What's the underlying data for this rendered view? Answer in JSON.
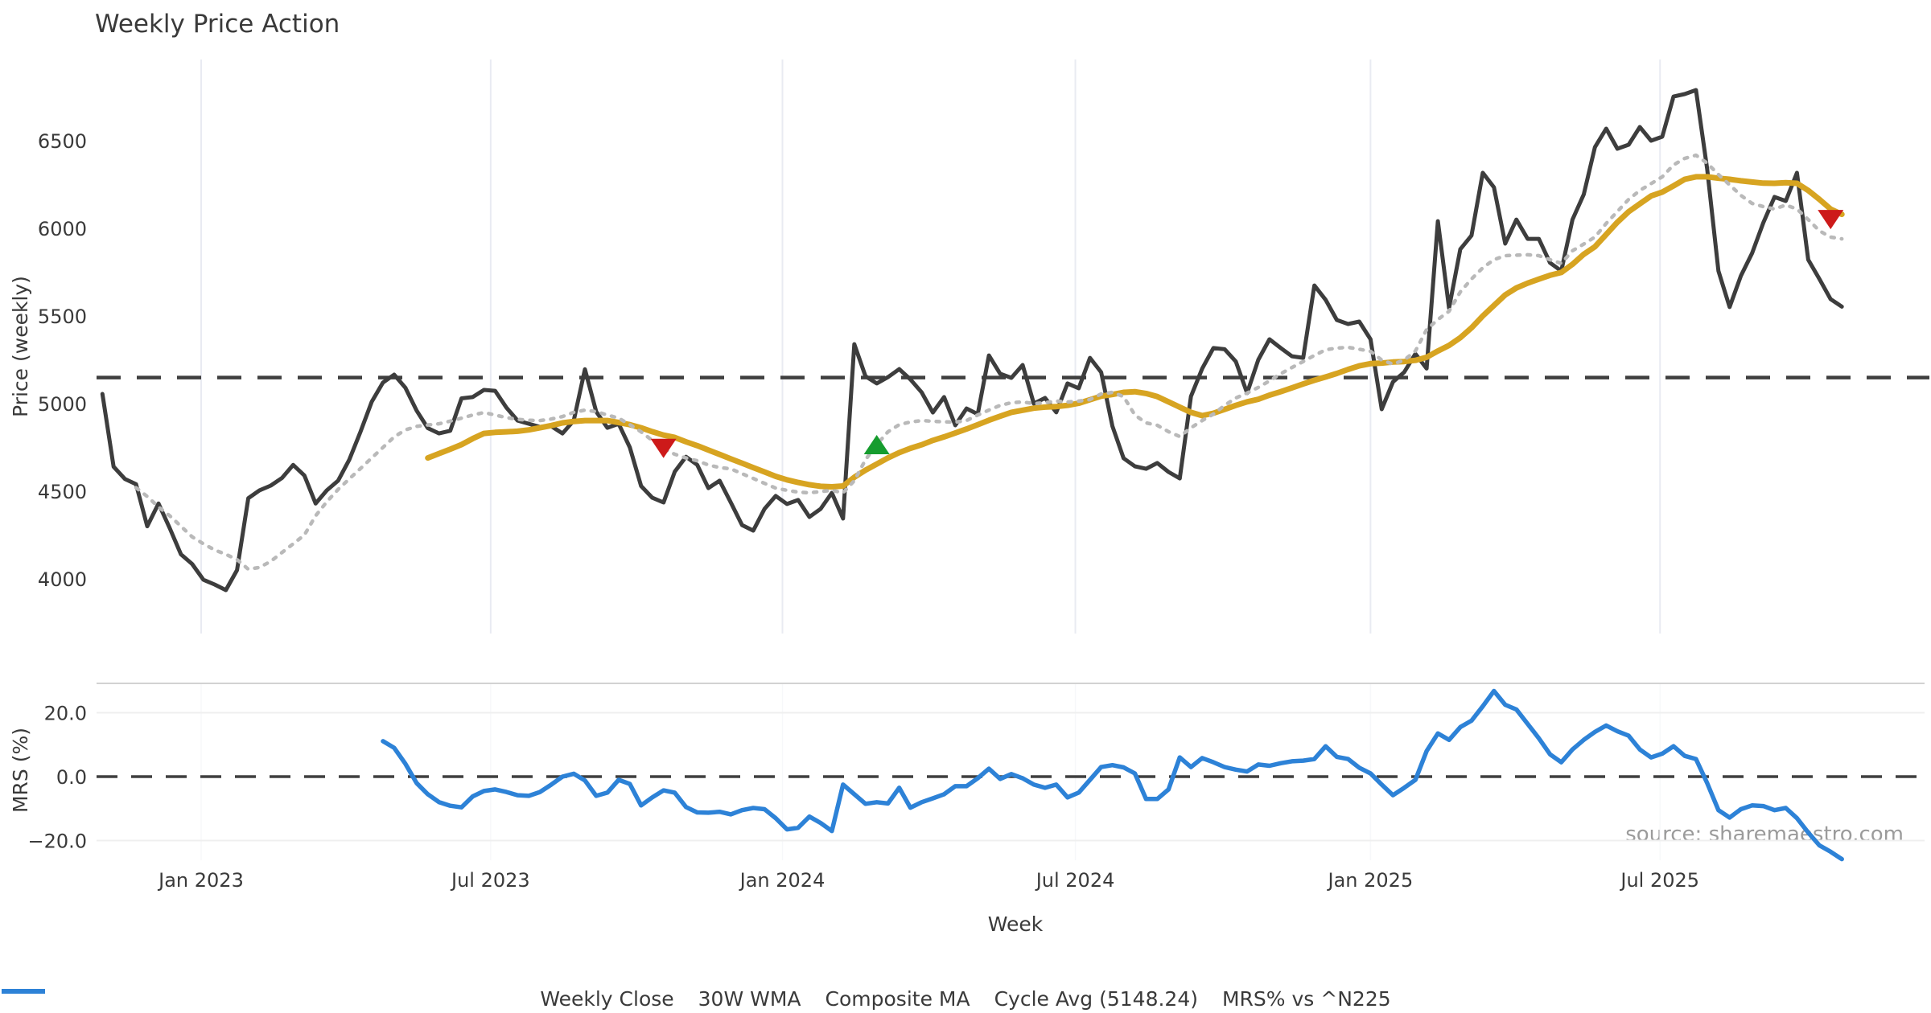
{
  "title": "Weekly Price Action",
  "source_note": "source: sharemaestro.com",
  "axes": {
    "x_label": "Week",
    "price_label": "Price (weekly)",
    "mrs_label": "MRS (%)",
    "price_ticks": [
      4000,
      4500,
      5000,
      5500,
      6000,
      6500
    ],
    "mrs_ticks": [
      -20.0,
      0.0,
      20.0
    ],
    "mrs_tick_labels": [
      "−20.0",
      "0.0",
      "20.0"
    ],
    "x_tick_labels": [
      "Jan 2023",
      "Jul 2023",
      "Jan 2024",
      "Jul 2024",
      "Jan 2025",
      "Jul 2025"
    ],
    "x_tick_week_index": [
      8.8,
      34.6,
      60.6,
      86.7,
      113.0,
      138.8
    ]
  },
  "colors": {
    "text": "#3a3a3a",
    "close": "#3d3d3d",
    "wma": "#d7a421",
    "composite": "#b9b9b9",
    "cycle": "#3f3f3f",
    "mrs": "#2d82d7",
    "marker_red": "#cd1a1a",
    "marker_green": "#169c2e",
    "grid_vertical": "#e9ebf2",
    "grid_light": "#efefef",
    "panel_border": "#d2d2d2"
  },
  "chart_data": {
    "type": "line",
    "title": "Weekly Price Action",
    "xlabel": "Week",
    "weeks_total": 156,
    "price_ylim": [
      3850,
      6900
    ],
    "mrs_ylim": [
      -29,
      29
    ],
    "cycle_avg": 5148.24,
    "legend": [
      {
        "label": "Weekly Close",
        "style": "solid",
        "color": "#3d3d3d"
      },
      {
        "label": "30W WMA",
        "style": "solid",
        "color": "#d7a421"
      },
      {
        "label": "Composite MA",
        "style": "dotted",
        "color": "#b9b9b9"
      },
      {
        "label": "Cycle Avg (5148.24)",
        "style": "dashed",
        "color": "#3f3f3f"
      },
      {
        "label": "MRS% vs ^N225",
        "style": "solid",
        "color": "#2d82d7"
      }
    ],
    "series": [
      {
        "name": "Weekly Close",
        "panel": "price",
        "style": "solid",
        "color": "#3d3d3d",
        "width": 5,
        "start_index": 0,
        "values": [
          5055,
          4640,
          4570,
          4540,
          4300,
          4430,
          4290,
          4140,
          4085,
          3995,
          3968,
          3936,
          4050,
          4460,
          4505,
          4532,
          4575,
          4650,
          4590,
          4430,
          4505,
          4560,
          4680,
          4840,
          5010,
          5120,
          5165,
          5090,
          4960,
          4860,
          4830,
          4845,
          5030,
          5037,
          5078,
          5073,
          4977,
          4903,
          4885,
          4867,
          4871,
          4830,
          4903,
          5196,
          4954,
          4862,
          4885,
          4750,
          4530,
          4463,
          4436,
          4611,
          4697,
          4651,
          4518,
          4560,
          4436,
          4307,
          4275,
          4399,
          4473,
          4427,
          4450,
          4353,
          4399,
          4491,
          4344,
          5339,
          5156,
          5115,
          5151,
          5197,
          5138,
          5064,
          4949,
          5037,
          4876,
          4972,
          4940,
          5275,
          5170,
          5147,
          5220,
          5000,
          5032,
          4950,
          5115,
          5087,
          5261,
          5179,
          4871,
          4688,
          4642,
          4628,
          4661,
          4610,
          4573,
          5041,
          5200,
          5317,
          5310,
          5240,
          5060,
          5250,
          5367,
          5317,
          5270,
          5261,
          5674,
          5592,
          5477,
          5454,
          5468,
          5367,
          4968,
          5124,
          5179,
          5284,
          5200,
          6041,
          5545,
          5881,
          5959,
          6317,
          6234,
          5913,
          6050,
          5940,
          5940,
          5803,
          5757,
          6050,
          6193,
          6463,
          6569,
          6454,
          6477,
          6578,
          6500,
          6523,
          6752,
          6766,
          6789,
          6339,
          5757,
          5551,
          5729,
          5858,
          6032,
          6179,
          6156,
          6317,
          5821,
          5711,
          5596,
          5553
        ]
      },
      {
        "name": "30W WMA",
        "panel": "price",
        "style": "solid",
        "color": "#d7a421",
        "width": 7,
        "start_index": 29,
        "values": [
          4690,
          4715,
          4740,
          4766,
          4800,
          4830,
          4836,
          4839,
          4842,
          4850,
          4862,
          4875,
          4890,
          4898,
          4903,
          4903,
          4903,
          4892,
          4880,
          4862,
          4840,
          4820,
          4807,
          4782,
          4760,
          4735,
          4710,
          4685,
          4660,
          4635,
          4610,
          4585,
          4565,
          4550,
          4537,
          4528,
          4525,
          4530,
          4580,
          4620,
          4655,
          4690,
          4720,
          4745,
          4765,
          4790,
          4810,
          4832,
          4855,
          4880,
          4905,
          4928,
          4950,
          4962,
          4974,
          4980,
          4983,
          4990,
          5002,
          5022,
          5042,
          5052,
          5064,
          5068,
          5058,
          5040,
          5010,
          4980,
          4950,
          4931,
          4945,
          4967,
          4990,
          5010,
          5025,
          5048,
          5068,
          5090,
          5112,
          5133,
          5152,
          5172,
          5195,
          5215,
          5228,
          5231,
          5237,
          5240,
          5247,
          5264,
          5300,
          5332,
          5376,
          5432,
          5500,
          5560,
          5620,
          5660,
          5687,
          5710,
          5732,
          5748,
          5795,
          5852,
          5895,
          5965,
          6035,
          6095,
          6140,
          6185,
          6207,
          6242,
          6280,
          6294,
          6294,
          6286,
          6280,
          6271,
          6264,
          6258,
          6257,
          6260,
          6257,
          6216,
          6165,
          6110,
          6080
        ]
      },
      {
        "name": "Composite MA",
        "panel": "price",
        "style": "dotted",
        "color": "#b9b9b9",
        "width": 4.5,
        "start_index": 3,
        "values": [
          4520,
          4470,
          4410,
          4360,
          4300,
          4240,
          4200,
          4165,
          4140,
          4110,
          4055,
          4065,
          4100,
          4150,
          4200,
          4250,
          4360,
          4440,
          4510,
          4570,
          4630,
          4690,
          4750,
          4810,
          4850,
          4870,
          4878,
          4885,
          4900,
          4917,
          4935,
          4949,
          4935,
          4920,
          4910,
          4905,
          4903,
          4912,
          4926,
          4950,
          4963,
          4954,
          4935,
          4917,
          4880,
          4839,
          4790,
          4743,
          4711,
          4690,
          4674,
          4650,
          4635,
          4628,
          4600,
          4573,
          4545,
          4518,
          4505,
          4495,
          4491,
          4498,
          4505,
          4491,
          4560,
          4680,
          4766,
          4839,
          4880,
          4895,
          4903,
          4899,
          4896,
          4894,
          4903,
          4935,
          4963,
          4990,
          5005,
          5009,
          5000,
          5005,
          5014,
          5009,
          5014,
          5023,
          5055,
          5064,
          5040,
          4935,
          4890,
          4876,
          4840,
          4812,
          4862,
          4903,
          4940,
          4990,
          5032,
          5060,
          5092,
          5130,
          5170,
          5206,
          5240,
          5275,
          5307,
          5317,
          5321,
          5310,
          5298,
          5248,
          5225,
          5248,
          5300,
          5422,
          5480,
          5527,
          5637,
          5711,
          5775,
          5821,
          5844,
          5847,
          5849,
          5844,
          5821,
          5800,
          5872,
          5910,
          5950,
          6028,
          6096,
          6165,
          6216,
          6255,
          6294,
          6362,
          6399,
          6417,
          6372,
          6307,
          6248,
          6188,
          6142,
          6124,
          6110,
          6133,
          6110,
          6050,
          5986,
          5950,
          5940
        ]
      },
      {
        "name": "MRS% vs ^N225",
        "panel": "mrs",
        "style": "solid",
        "color": "#2d82d7",
        "width": 5.5,
        "start_index": 25,
        "values": [
          11.1,
          9.0,
          4.0,
          -2.0,
          -5.5,
          -8.0,
          -9.1,
          -9.6,
          -6.2,
          -4.5,
          -4.0,
          -4.8,
          -5.8,
          -6.0,
          -4.8,
          -2.5,
          0.0,
          0.9,
          -1.2,
          -6.0,
          -5.0,
          -1.0,
          -2.3,
          -9.0,
          -6.5,
          -4.3,
          -5.0,
          -9.5,
          -11.2,
          -11.3,
          -11.0,
          -11.8,
          -10.5,
          -9.8,
          -10.2,
          -13.0,
          -16.5,
          -16.0,
          -12.5,
          -14.5,
          -17.0,
          -2.5,
          -5.5,
          -8.5,
          -8.0,
          -8.4,
          -3.5,
          -9.7,
          -8.0,
          -6.8,
          -5.5,
          -3.0,
          -3.0,
          -0.5,
          2.5,
          -0.7,
          0.8,
          -0.5,
          -2.5,
          -3.5,
          -2.5,
          -6.5,
          -5.0,
          -1.0,
          3.0,
          3.6,
          2.9,
          1.0,
          -7.0,
          -7.0,
          -4.0,
          6.0,
          3.0,
          5.8,
          4.5,
          3.0,
          2.2,
          1.6,
          3.8,
          3.4,
          4.2,
          4.8,
          5.0,
          5.5,
          9.5,
          6.2,
          5.5,
          2.8,
          1.0,
          -2.5,
          -5.8,
          -3.5,
          -1.0,
          8.0,
          13.5,
          11.5,
          15.5,
          17.5,
          22.0,
          26.8,
          22.5,
          21.0,
          16.5,
          12.0,
          7.0,
          4.5,
          8.5,
          11.5,
          14.0,
          16.0,
          14.2,
          12.8,
          8.5,
          6.0,
          7.2,
          9.5,
          6.5,
          5.5,
          -2.0,
          -10.5,
          -12.8,
          -10.2,
          -9.0,
          -9.2,
          -10.5,
          -9.8,
          -13.0,
          -17.5,
          -21.5,
          -23.5,
          -25.8
        ]
      }
    ],
    "markers": [
      {
        "shape": "triangle-down",
        "color": "#cd1a1a",
        "week_index": 50,
        "value": 4744
      },
      {
        "shape": "triangle-up",
        "color": "#169c2e",
        "week_index": 69,
        "value": 4766
      },
      {
        "shape": "triangle-down",
        "color": "#cd1a1a",
        "week_index": 154,
        "value": 6050
      }
    ]
  }
}
